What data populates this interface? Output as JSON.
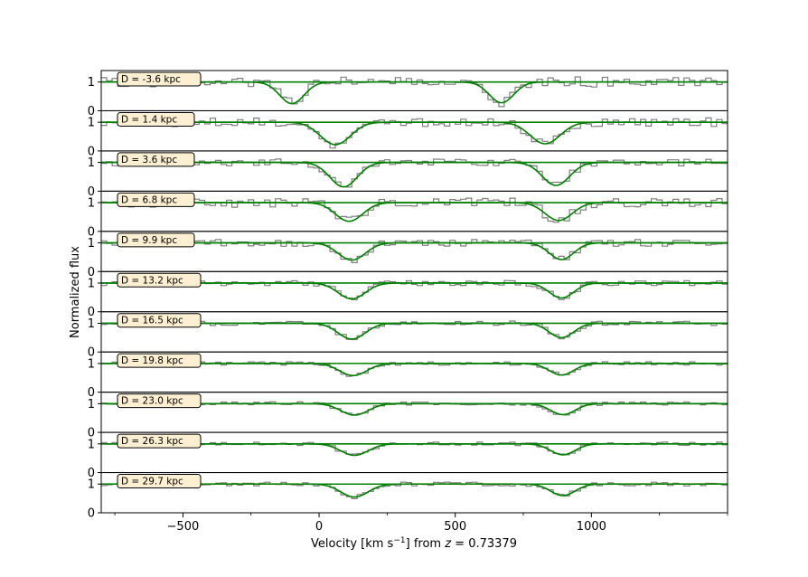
{
  "chart_data": {
    "type": "line",
    "xlabel": "Velocity [km s⁻¹] from z = 0.73379",
    "ylabel": "Normalized flux",
    "xlim": [
      -800,
      1500
    ],
    "ylim": [
      0,
      1.4
    ],
    "x_ticks": [
      -500,
      0,
      500,
      1000
    ],
    "y_ticks": [
      0,
      1
    ],
    "colors": {
      "data": "#7f7f7f",
      "model": "#008000",
      "continuum": "#008000",
      "label_bg": "#fdefd2"
    },
    "series_names": [
      "observed spectrum",
      "absorption model",
      "continuum"
    ],
    "panels": [
      {
        "label": "D = -3.6 kpc",
        "model_lines": [
          {
            "center": -100,
            "depth": 0.75,
            "sigma": 45
          },
          {
            "center": 670,
            "depth": 0.72,
            "sigma": 45
          }
        ],
        "seed": 11,
        "noise": 0.18
      },
      {
        "label": "D = 1.4 kpc",
        "model_lines": [
          {
            "center": 60,
            "depth": 0.78,
            "sigma": 55
          },
          {
            "center": 830,
            "depth": 0.75,
            "sigma": 55
          }
        ],
        "seed": 12,
        "noise": 0.15
      },
      {
        "label": "D = 3.6 kpc",
        "model_lines": [
          {
            "center": 90,
            "depth": 0.85,
            "sigma": 50
          },
          {
            "center": 870,
            "depth": 0.8,
            "sigma": 50
          }
        ],
        "seed": 13,
        "noise": 0.12
      },
      {
        "label": "D = 6.8 kpc",
        "model_lines": [
          {
            "center": 110,
            "depth": 0.65,
            "sigma": 50
          },
          {
            "center": 880,
            "depth": 0.62,
            "sigma": 50
          }
        ],
        "seed": 14,
        "noise": 0.16
      },
      {
        "label": "D = 9.9 kpc",
        "model_lines": [
          {
            "center": 120,
            "depth": 0.6,
            "sigma": 50
          },
          {
            "center": 890,
            "depth": 0.58,
            "sigma": 45
          }
        ],
        "seed": 15,
        "noise": 0.12
      },
      {
        "label": "D = 13.2 kpc",
        "model_lines": [
          {
            "center": 120,
            "depth": 0.55,
            "sigma": 50
          },
          {
            "center": 890,
            "depth": 0.52,
            "sigma": 45
          }
        ],
        "seed": 16,
        "noise": 0.09
      },
      {
        "label": "D = 16.5 kpc",
        "model_lines": [
          {
            "center": 120,
            "depth": 0.55,
            "sigma": 50
          },
          {
            "center": 890,
            "depth": 0.5,
            "sigma": 45
          }
        ],
        "seed": 17,
        "noise": 0.08
      },
      {
        "label": "D = 19.8 kpc",
        "model_lines": [
          {
            "center": 125,
            "depth": 0.42,
            "sigma": 50
          },
          {
            "center": 890,
            "depth": 0.4,
            "sigma": 45
          }
        ],
        "seed": 18,
        "noise": 0.06
      },
      {
        "label": "D = 23.0 kpc",
        "model_lines": [
          {
            "center": 130,
            "depth": 0.4,
            "sigma": 50
          },
          {
            "center": 895,
            "depth": 0.38,
            "sigma": 45
          }
        ],
        "seed": 19,
        "noise": 0.06
      },
      {
        "label": "D = 26.3 kpc",
        "model_lines": [
          {
            "center": 130,
            "depth": 0.4,
            "sigma": 50
          },
          {
            "center": 895,
            "depth": 0.38,
            "sigma": 45
          }
        ],
        "seed": 20,
        "noise": 0.06
      },
      {
        "label": "D = 29.7 kpc",
        "model_lines": [
          {
            "center": 130,
            "depth": 0.45,
            "sigma": 50
          },
          {
            "center": 895,
            "depth": 0.4,
            "sigma": 45
          }
        ],
        "seed": 21,
        "noise": 0.07
      }
    ]
  }
}
